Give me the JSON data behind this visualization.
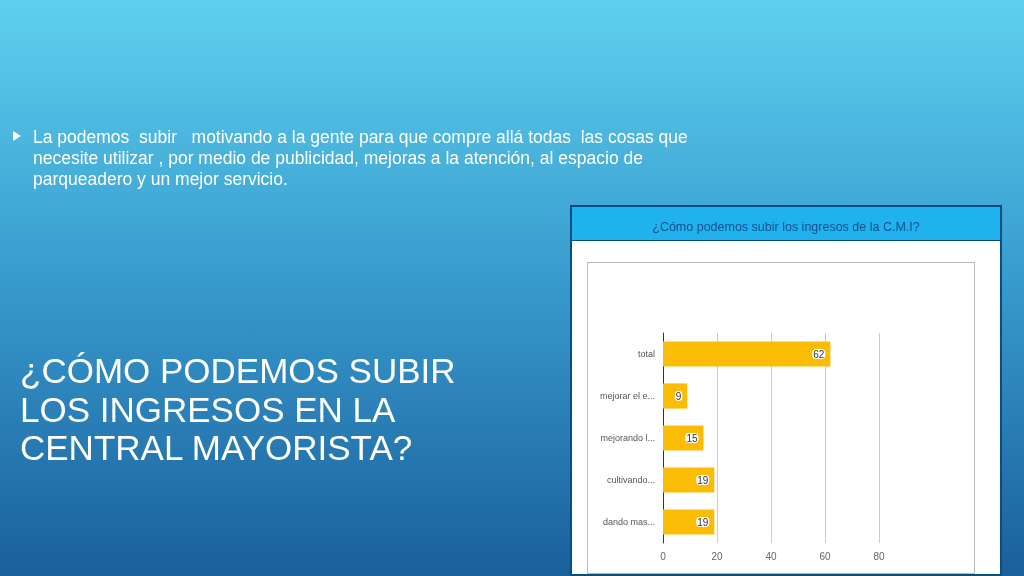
{
  "chart_data": {
    "type": "bar",
    "orientation": "horizontal",
    "title": "¿Cómo podemos subir los ingresos de la C.M.I?",
    "annotations": [
      "La podemos  subir   motivando a la gente para que compre allá todas  las cosas que necesite utilizar , por medio de publicidad, mejoras a la atención, al espacio de parqueadero y un mejor servicio.",
      "¿CÓMO PODEMOS SUBIR LOS INGRESOS EN LA CENTRAL MAYORISTA?"
    ],
    "categories": [
      "total",
      "mejorar el e...",
      "mejorando l...",
      "cultivando...",
      "dando mas..."
    ],
    "values": [
      62,
      9,
      15,
      19,
      19
    ],
    "color": "#fbbc05",
    "data_labels": true,
    "grid": "x",
    "xlim": [
      0,
      80
    ],
    "xticks": [
      0,
      20,
      40,
      60,
      80
    ]
  }
}
